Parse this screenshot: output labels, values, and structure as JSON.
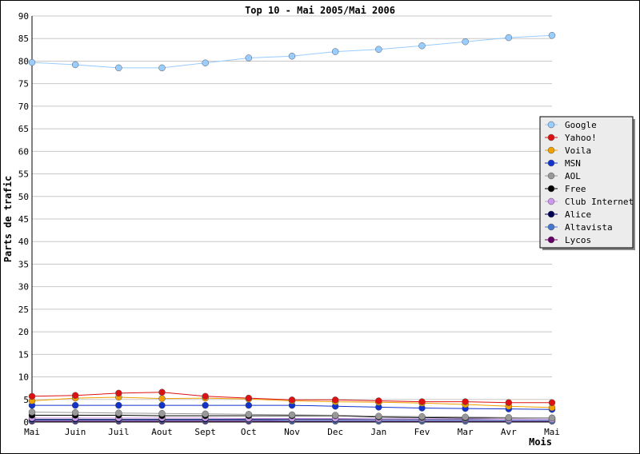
{
  "chart_data": {
    "type": "line",
    "title": "Top 10 - Mai 2005/Mai 2006",
    "xlabel": "Mois",
    "ylabel": "Parts de trafic",
    "ylim": [
      0,
      90
    ],
    "yticks": [
      0,
      5,
      10,
      15,
      20,
      25,
      30,
      35,
      40,
      45,
      50,
      55,
      60,
      65,
      70,
      75,
      80,
      85,
      90
    ],
    "grid": true,
    "legend_position": "right",
    "categories": [
      "Mai",
      "Juin",
      "Juil",
      "Aout",
      "Sept",
      "Oct",
      "Nov",
      "Dec",
      "Jan",
      "Fev",
      "Mar",
      "Avr",
      "Mai"
    ],
    "series": [
      {
        "name": "Google",
        "color": "#99ccff",
        "values": [
          79.7,
          79.2,
          78.5,
          78.5,
          79.6,
          80.7,
          81.1,
          82.1,
          82.6,
          83.4,
          84.3,
          85.2,
          85.7
        ]
      },
      {
        "name": "Yahoo!",
        "color": "#dd1111",
        "values": [
          5.7,
          5.9,
          6.4,
          6.6,
          5.7,
          5.3,
          4.9,
          4.9,
          4.7,
          4.5,
          4.5,
          4.3,
          4.3
        ]
      },
      {
        "name": "Voila",
        "color": "#f0a000",
        "values": [
          4.7,
          5.3,
          5.5,
          5.2,
          5.3,
          5.1,
          4.7,
          4.5,
          4.4,
          4.2,
          3.9,
          3.5,
          3.2
        ]
      },
      {
        "name": "MSN",
        "color": "#1133cc",
        "values": [
          3.7,
          3.7,
          3.7,
          3.7,
          3.7,
          3.7,
          3.7,
          3.5,
          3.3,
          3.1,
          3.0,
          2.9,
          2.8
        ]
      },
      {
        "name": "AOL",
        "color": "#999999",
        "values": [
          2.2,
          2.1,
          2.0,
          1.9,
          1.8,
          1.7,
          1.6,
          1.5,
          1.3,
          1.2,
          1.1,
          1.0,
          0.9
        ]
      },
      {
        "name": "Free",
        "color": "#000000",
        "values": [
          1.5,
          1.5,
          1.5,
          1.4,
          1.4,
          1.4,
          1.4,
          1.4,
          1.1,
          1.0,
          0.9,
          0.9,
          0.9
        ]
      },
      {
        "name": "Club Internet",
        "color": "#cc99ee",
        "values": [
          0.9,
          0.9,
          0.9,
          0.9,
          0.9,
          0.8,
          0.8,
          0.8,
          0.7,
          0.7,
          0.7,
          0.6,
          0.6
        ]
      },
      {
        "name": "Alice",
        "color": "#000055",
        "values": [
          0.6,
          0.6,
          0.6,
          0.6,
          0.6,
          0.6,
          0.6,
          0.6,
          0.6,
          0.6,
          0.6,
          0.6,
          0.6
        ]
      },
      {
        "name": "Altavista",
        "color": "#4477cc",
        "values": [
          0.4,
          0.4,
          0.4,
          0.4,
          0.4,
          0.4,
          0.3,
          0.3,
          0.3,
          0.3,
          0.3,
          0.3,
          0.3
        ]
      },
      {
        "name": "Lycos",
        "color": "#660066",
        "values": [
          0.2,
          0.2,
          0.2,
          0.2,
          0.2,
          0.2,
          0.2,
          0.2,
          0.2,
          0.2,
          0.2,
          0.2,
          0.2
        ]
      }
    ]
  }
}
